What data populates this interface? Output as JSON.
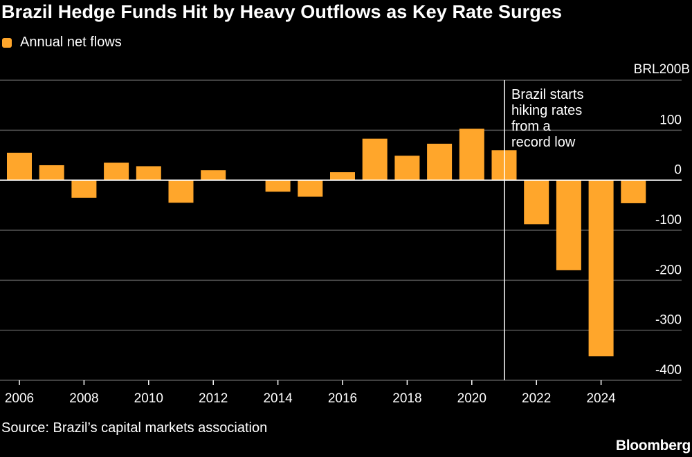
{
  "header": {
    "title": "Brazil Hedge Funds Hit by Heavy Outflows as Key Rate Surges"
  },
  "legend": {
    "label": "Annual net flows",
    "color": "#FFA62B"
  },
  "footer": {
    "source": "Source: Brazil’s capital markets association",
    "brand": "Bloomberg"
  },
  "chart_data": {
    "type": "bar",
    "x": [
      2006,
      2007,
      2008,
      2009,
      2010,
      2011,
      2012,
      2013,
      2014,
      2015,
      2016,
      2017,
      2018,
      2019,
      2020,
      2021,
      2022,
      2023,
      2024,
      2025
    ],
    "series": [
      {
        "name": "Annual net flows",
        "color": "#FFA62B",
        "values": [
          55,
          30,
          -35,
          35,
          28,
          -45,
          20,
          0,
          -23,
          -33,
          16,
          83,
          49,
          73,
          103,
          60,
          -88,
          -180,
          -352,
          -46
        ]
      }
    ],
    "y_unit_label": "BRL200B",
    "y_ticks": [
      100,
      0,
      -100,
      -200,
      -300,
      -400
    ],
    "x_tick_labels": [
      "2006",
      "2008",
      "2010",
      "2012",
      "2014",
      "2016",
      "2018",
      "2020",
      "2022",
      "2024"
    ],
    "ylim": [
      -400,
      200
    ],
    "grid": true,
    "annotation": {
      "x": 2021,
      "lines": [
        "Brazil starts",
        "hiking rates",
        "from a",
        "record low"
      ]
    },
    "bar_color": "#FFA62B",
    "zero_line_color": "#FFFFFF",
    "grid_color": "#555555"
  }
}
